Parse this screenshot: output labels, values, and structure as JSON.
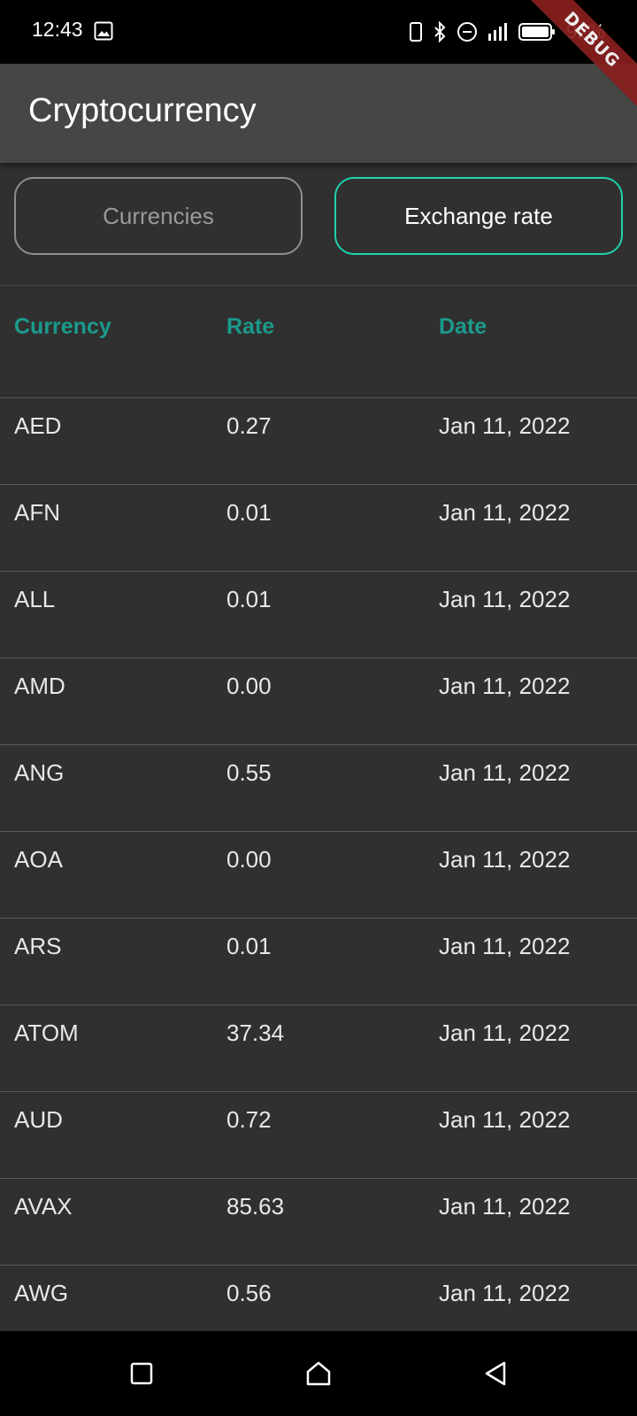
{
  "status_bar": {
    "time": "12:43",
    "battery": "92%"
  },
  "debug_banner": "DEBUG",
  "app_bar": {
    "title": "Cryptocurrency"
  },
  "tabs": {
    "currencies": "Currencies",
    "exchange_rate": "Exchange rate",
    "active": "exchange_rate"
  },
  "colors": {
    "accent": "#1ed2b0",
    "header_text": "#1b9a8c",
    "app_bar_bg": "#464646",
    "body_bg": "#303030"
  },
  "table": {
    "headers": {
      "currency": "Currency",
      "rate": "Rate",
      "date": "Date"
    },
    "rows": [
      {
        "currency": "AED",
        "rate": "0.27",
        "date": "Jan 11, 2022"
      },
      {
        "currency": "AFN",
        "rate": "0.01",
        "date": "Jan 11, 2022"
      },
      {
        "currency": "ALL",
        "rate": "0.01",
        "date": "Jan 11, 2022"
      },
      {
        "currency": "AMD",
        "rate": "0.00",
        "date": "Jan 11, 2022"
      },
      {
        "currency": "ANG",
        "rate": "0.55",
        "date": "Jan 11, 2022"
      },
      {
        "currency": "AOA",
        "rate": "0.00",
        "date": "Jan 11, 2022"
      },
      {
        "currency": "ARS",
        "rate": "0.01",
        "date": "Jan 11, 2022"
      },
      {
        "currency": "ATOM",
        "rate": "37.34",
        "date": "Jan 11, 2022"
      },
      {
        "currency": "AUD",
        "rate": "0.72",
        "date": "Jan 11, 2022"
      },
      {
        "currency": "AVAX",
        "rate": "85.63",
        "date": "Jan 11, 2022"
      },
      {
        "currency": "AWG",
        "rate": "0.56",
        "date": "Jan 11, 2022"
      }
    ]
  }
}
